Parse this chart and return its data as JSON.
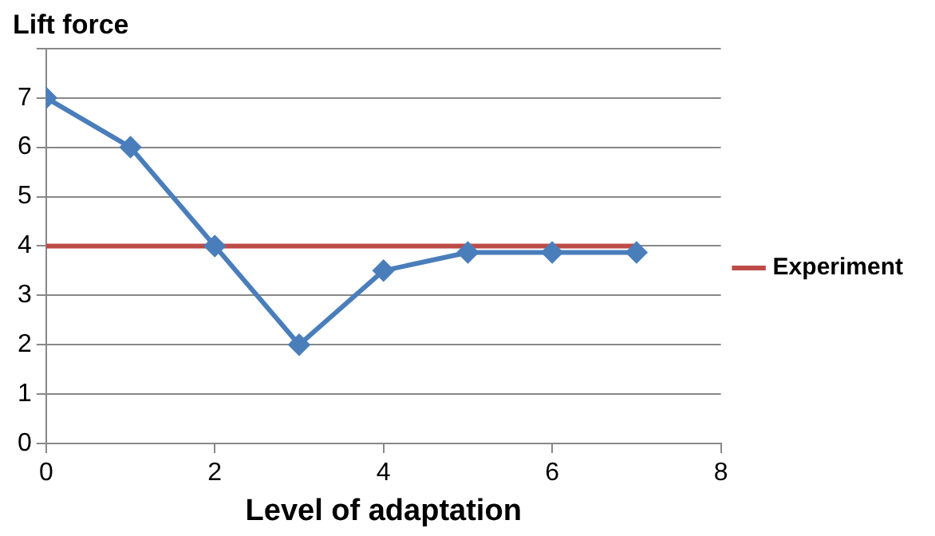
{
  "chart_data": {
    "type": "line",
    "title": "Lift force",
    "xlabel": "Level of adaptation",
    "xlim": [
      0,
      8
    ],
    "xticks": [
      0,
      2,
      4,
      6,
      8
    ],
    "ylim": [
      0,
      8
    ],
    "yticks": [
      0,
      1,
      2,
      3,
      4,
      5,
      6,
      7,
      {
        "value": 8,
        "label": null
      }
    ],
    "grid": "y",
    "legend": "right",
    "series": [
      {
        "color": "#4a7ebb",
        "marker": "diamond",
        "x": [
          0,
          1,
          2,
          3,
          4,
          5,
          6,
          7
        ],
        "values": [
          7,
          6,
          4,
          2,
          3.5,
          3.87,
          3.87,
          3.87
        ]
      },
      {
        "name": "Experiment",
        "color": "#be4b48",
        "marker": "none",
        "x": [
          0,
          7
        ],
        "values": [
          4,
          4
        ]
      }
    ]
  }
}
